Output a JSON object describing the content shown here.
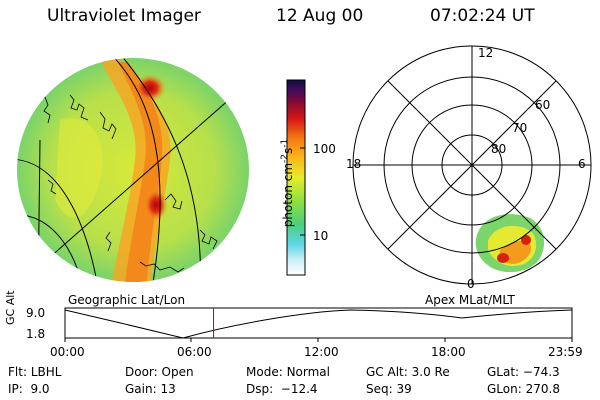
{
  "header": {
    "instrument": "Ultraviolet Imager",
    "date": "12 Aug 00",
    "time": "07:02:24 UT"
  },
  "colorbar": {
    "unit_label": "photon cm",
    "unit_exp1": "-2",
    "unit_mid": "s",
    "unit_exp2": "-1",
    "tick_top": "100",
    "tick_bottom": "10"
  },
  "left_panel": {
    "caption": "Geographic Lat/Lon"
  },
  "right_panel": {
    "caption": "Apex MLat/MLT",
    "mlt_labels": {
      "top": "12",
      "left": "18",
      "right": "6",
      "bottom": "0"
    },
    "lat_labels": [
      "60",
      "70",
      "80"
    ]
  },
  "altitude_plot": {
    "ylabel": "GC Alt",
    "ytick_top": "9.0",
    "ytick_bottom": "1.8",
    "xticks": [
      "00:00",
      "06:00",
      "12:00",
      "18:00",
      "23:59"
    ],
    "current_time_fraction": 0.293
  },
  "info": {
    "flt_label": "Flt:",
    "flt_value": "LBHL",
    "ip_label": "IP:",
    "ip_value": "9.0",
    "door_label": "Door:",
    "door_value": "Open",
    "gain_label": "Gain:",
    "gain_value": "13",
    "mode_label": "Mode:",
    "mode_value": "Normal",
    "dsp_label": "Dsp:",
    "dsp_value": "−12.4",
    "gcalt_label": "GC Alt:",
    "gcalt_value": "3.0 Re",
    "seq_label": "Seq:",
    "seq_value": "39",
    "glat_label": "GLat:",
    "glat_value": "−74.3",
    "glon_label": "GLon:",
    "glon_value": "270.8"
  },
  "colors": {
    "current_time_marker": "#cc0000"
  }
}
